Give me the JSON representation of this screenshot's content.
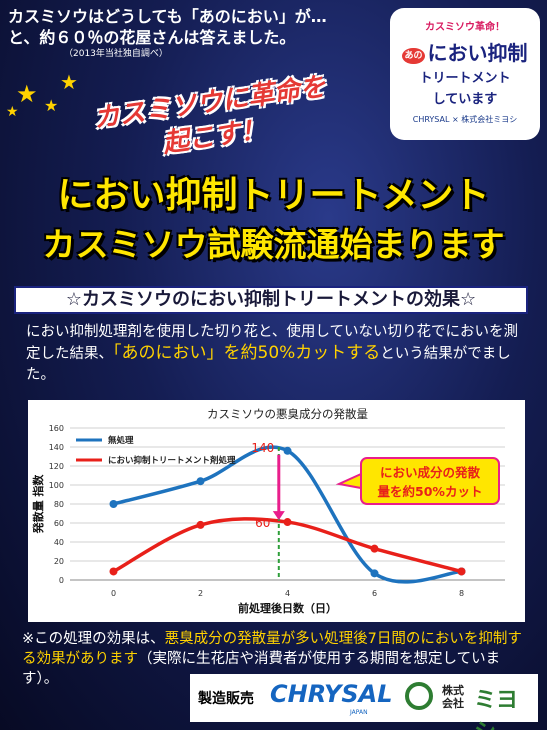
{
  "intro": {
    "line1": "カスミソウはどうしても「あのにおい」が…",
    "line2": "と、約６０％の花屋さんは答えました。",
    "line3": "（2013年当社独自調べ）"
  },
  "badge": {
    "line1": "カスミソウ革命！",
    "prefix": "あの",
    "line2": "におい抑制",
    "line3": "トリートメント",
    "line4": "しています",
    "logos": "CHRYSAL × 株式会社ミヨシ"
  },
  "revolution": {
    "line1": "カスミソウに革命を",
    "line2": "起こす！"
  },
  "headline": {
    "line1": "におい抑制トリートメント",
    "line2": "カスミソウ試験流通始まります"
  },
  "section_title": "☆カスミソウのにおい抑制トリートメントの効果☆",
  "description": {
    "part1": "におい抑制処理剤を使用した切り花と、使用していない切り花でにおいを測定した結果、",
    "highlight": "「あのにおい」を約50%カットする",
    "part2": "という結果がでました。"
  },
  "chart_data": {
    "type": "line",
    "title": "カスミソウの悪臭成分の発散量",
    "xlabel": "前処理後日数（日）",
    "ylabel": "発散量 指数",
    "xlim": [
      -1,
      9
    ],
    "ylim": [
      0,
      160
    ],
    "xticks": [
      0,
      2,
      4,
      6,
      8
    ],
    "yticks": [
      0,
      20,
      40,
      60,
      80,
      100,
      120,
      140,
      160
    ],
    "grid": true,
    "legend": "top-left",
    "series": [
      {
        "name": "無処理",
        "color": "#1e73be",
        "x": [
          0,
          2,
          4,
          6,
          8
        ],
        "y": [
          80,
          104,
          136,
          7,
          9
        ]
      },
      {
        "name": "におい抑制トリートメント剤処理",
        "color": "#e8201a",
        "x": [
          0,
          2,
          4,
          6,
          8
        ],
        "y": [
          9,
          58,
          61,
          33,
          9
        ]
      }
    ],
    "annotations": {
      "top_value": "140",
      "bottom_value": "60",
      "callout_line1": "におい成分の発散",
      "callout_line2": "量を約50%カット"
    }
  },
  "note": {
    "part1": "※この処理の効果は、",
    "highlight": "悪臭成分の発散量が多い処理後7日間のにおいを抑制する効果があります",
    "part2": "（実際に生花店や消費者が使用する期間を想定しています）。"
  },
  "maker": {
    "label": "製造販売",
    "brand": "CHRYSAL",
    "brand_sub": "JAPAN",
    "company_prefix": "株式会社",
    "company": "ミヨシ"
  }
}
